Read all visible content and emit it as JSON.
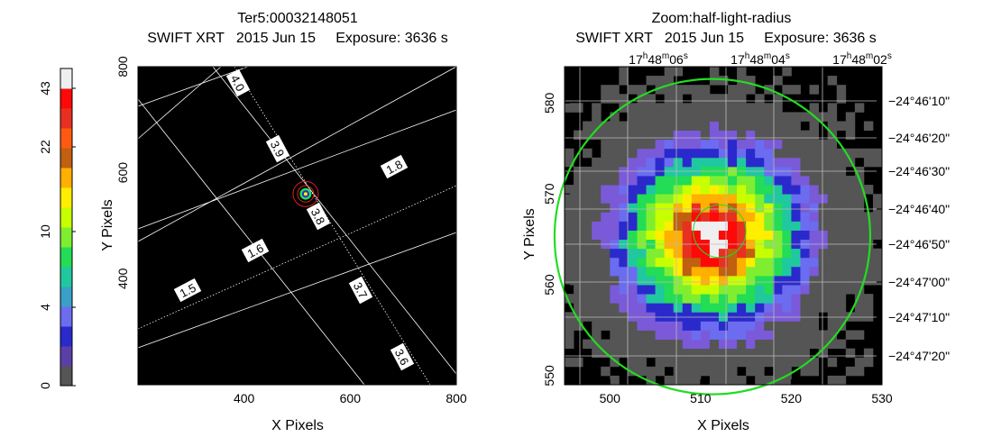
{
  "chart_data": [
    {
      "type": "heatmap",
      "title": "Ter5:00032148051",
      "subtitle": "SWIFT XRT   2015 Jun 15     Exposure: 3636 s",
      "xlabel": "X Pixels",
      "ylabel": "Y Pixels",
      "xlim": [
        200,
        800
      ],
      "ylim": [
        200,
        800
      ],
      "xticks": [
        "400",
        "600",
        "800"
      ],
      "yticks": [
        "400",
        "600",
        "800"
      ],
      "grid_labels": [
        "4.0",
        "3.9",
        "3.8",
        "3.7",
        "3.6",
        "1.8",
        "1.6",
        "1.5"
      ],
      "source_center": [
        516,
        560
      ],
      "colorbar": {
        "ticks": [
          "0",
          "4",
          "10",
          "22",
          "43"
        ],
        "colors": [
          "#555555",
          "#5b3fa8",
          "#2a2acc",
          "#6c6cf0",
          "#3aa0c8",
          "#20c8a0",
          "#22dd55",
          "#80ee30",
          "#c8ff00",
          "#ffee00",
          "#ffb000",
          "#c06010",
          "#ff5a10",
          "#e83020",
          "#ff0808",
          "#efefef"
        ]
      }
    },
    {
      "type": "heatmap",
      "title": "Zoom:half-light-radius",
      "subtitle": "SWIFT XRT   2015 Jun 15     Exposure: 3636 s",
      "xlabel": "X Pixels",
      "ylabel": "Y Pixels",
      "xlim": [
        495,
        530
      ],
      "ylim": [
        549,
        584
      ],
      "xticks": [
        "500",
        "510",
        "520",
        "530"
      ],
      "yticks": [
        "550",
        "560",
        "570",
        "580"
      ],
      "ra_ticks": [
        {
          "h": "17",
          "m": "48",
          "s": "06"
        },
        {
          "h": "17",
          "m": "48",
          "s": "04"
        },
        {
          "h": "17",
          "m": "48",
          "s": "02"
        }
      ],
      "dec_ticks": [
        "−24°46ʹ10\"",
        "−24°46ʹ20\"",
        "−24°46ʹ30\"",
        "−24°46ʹ40\"",
        "−24°46ʹ50\"",
        "−24°47ʹ00\"",
        "−24°47ʹ10\"",
        "−24°47ʹ20\""
      ],
      "source_center": [
        511.3,
        565.3
      ],
      "half_light_radius_circle_px": 17.4
    }
  ]
}
